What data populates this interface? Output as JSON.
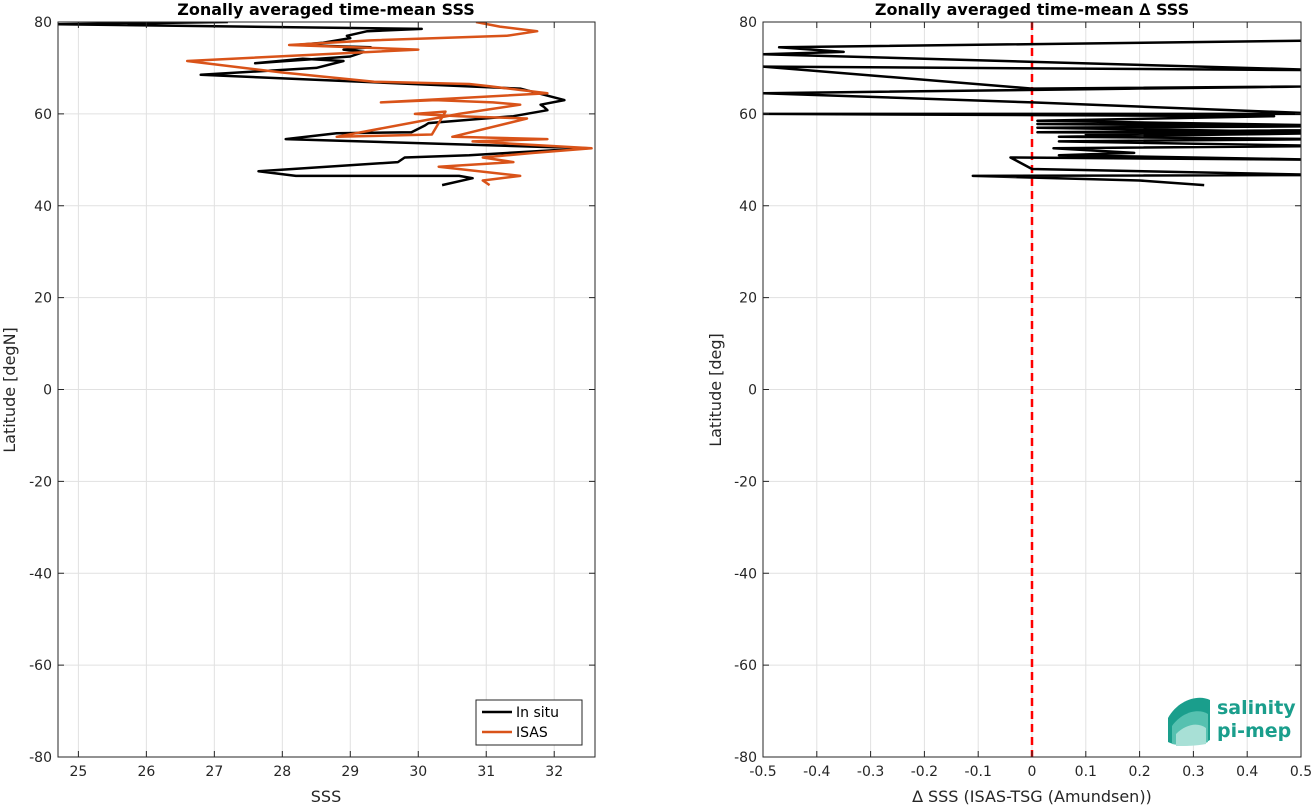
{
  "chart_data": [
    {
      "type": "line",
      "title": "Zonally averaged time-mean SSS",
      "xlabel": "SSS",
      "ylabel": "Latitude [degN]",
      "xlim": [
        24.7,
        32.6
      ],
      "ylim": [
        -80,
        80
      ],
      "xticks": [
        25,
        26,
        27,
        28,
        29,
        30,
        31,
        32
      ],
      "yticks": [
        -80,
        -60,
        -40,
        -20,
        0,
        20,
        40,
        60,
        80
      ],
      "grid": true,
      "legend_position": "bottom-right",
      "series": [
        {
          "name": "In situ",
          "color": "#000000",
          "x": [
            30.35,
            30.8,
            30.6,
            28.2,
            27.65,
            29.7,
            29.8,
            30.75,
            31.9,
            32.5,
            28.05,
            28.8,
            29.9,
            30.1,
            30.15,
            31.4,
            31.9,
            31.85,
            31.8,
            32.15,
            31.5,
            26.8,
            28.5,
            28.9,
            28.3,
            27.6,
            29.0,
            29.2,
            28.9,
            29.3,
            28.2,
            28.6,
            29.0,
            28.95,
            29.25,
            30.05,
            24.7,
            27.2
          ],
          "y": [
            44.5,
            46.0,
            46.5,
            46.5,
            47.5,
            49.5,
            50.5,
            51.0,
            52.0,
            52.5,
            54.5,
            55.8,
            56.0,
            57.5,
            58.0,
            59.5,
            60.8,
            61.5,
            62.0,
            63.0,
            65.5,
            68.5,
            70.0,
            71.5,
            72.0,
            71.0,
            72.5,
            73.5,
            74.0,
            74.5,
            75.0,
            75.5,
            76.5,
            77.0,
            78.0,
            78.5,
            79.5,
            80.0
          ]
        },
        {
          "name": "ISAS",
          "color": "#d95319",
          "x": [
            31.05,
            30.95,
            31.5,
            30.3,
            31.4,
            30.95,
            31.7,
            32.55,
            30.8,
            31.9,
            30.5,
            31.6,
            30.6,
            29.95,
            30.4,
            30.2,
            28.8,
            30.6,
            31.5,
            31.1,
            30.25,
            29.45,
            31.9,
            31.05,
            30.75,
            29.35,
            28.0,
            26.6,
            28.6,
            30.0,
            28.1,
            29.3,
            31.3,
            31.75,
            31.2,
            30.85
          ],
          "y": [
            44.5,
            45.5,
            46.5,
            48.5,
            49.5,
            50.5,
            51.5,
            52.5,
            54.0,
            54.5,
            55.0,
            59.0,
            59.5,
            60.0,
            60.5,
            55.5,
            55.0,
            60.0,
            62.0,
            62.5,
            63.0,
            62.5,
            64.5,
            66.0,
            66.5,
            67.0,
            69.0,
            71.5,
            73.0,
            74.0,
            75.0,
            76.0,
            77.0,
            78.0,
            79.0,
            80.0
          ]
        }
      ]
    },
    {
      "type": "line",
      "title": "Zonally averaged time-mean ∆ SSS",
      "xlabel": "∆ SSS (ISAS-TSG (Amundsen))",
      "ylabel": "Latitude [deg]",
      "xlim": [
        -0.5,
        0.5
      ],
      "ylim": [
        -80,
        80
      ],
      "xticks": [
        -0.5,
        -0.4,
        -0.3,
        -0.2,
        -0.1,
        0,
        0.1,
        0.2,
        0.3,
        0.4,
        0.5
      ],
      "yticks": [
        -80,
        -60,
        -40,
        -20,
        0,
        20,
        40,
        60,
        80
      ],
      "grid": true,
      "reference_line": {
        "x": 0,
        "color": "#ff0000",
        "style": "dashed"
      },
      "series": [
        {
          "color": "#000000",
          "x": [
            0.32,
            0.2,
            -0.11,
            0.55,
            0.0,
            -0.04,
            0.55,
            0.05,
            0.19,
            0.04,
            0.55,
            0.05,
            0.55,
            0.05,
            0.55,
            0.01,
            0.55,
            0.1,
            0.55,
            0.01,
            0.55,
            0.01,
            0.55,
            0.01,
            0.45,
            -0.5,
            0.55,
            0.0,
            -0.5,
            0.55,
            0.0,
            -0.5,
            0.55,
            -0.5,
            -0.35,
            -0.47,
            0.55
          ],
          "y": [
            44.5,
            45.5,
            46.5,
            46.7,
            48.0,
            50.5,
            50.0,
            51.0,
            51.5,
            52.5,
            53.0,
            54.0,
            54.5,
            55.0,
            55.8,
            56.0,
            56.5,
            55.5,
            56.0,
            57.0,
            57.3,
            57.8,
            57.5,
            58.5,
            59.5,
            60.0,
            60.0,
            62.5,
            64.5,
            66.0,
            65.5,
            70.3,
            69.5,
            73.0,
            73.5,
            74.5,
            76.0
          ]
        }
      ]
    }
  ],
  "legend": {
    "items": [
      "In situ",
      "ISAS"
    ]
  },
  "logo": {
    "line1": "salinity",
    "line2": "pi-mep"
  }
}
